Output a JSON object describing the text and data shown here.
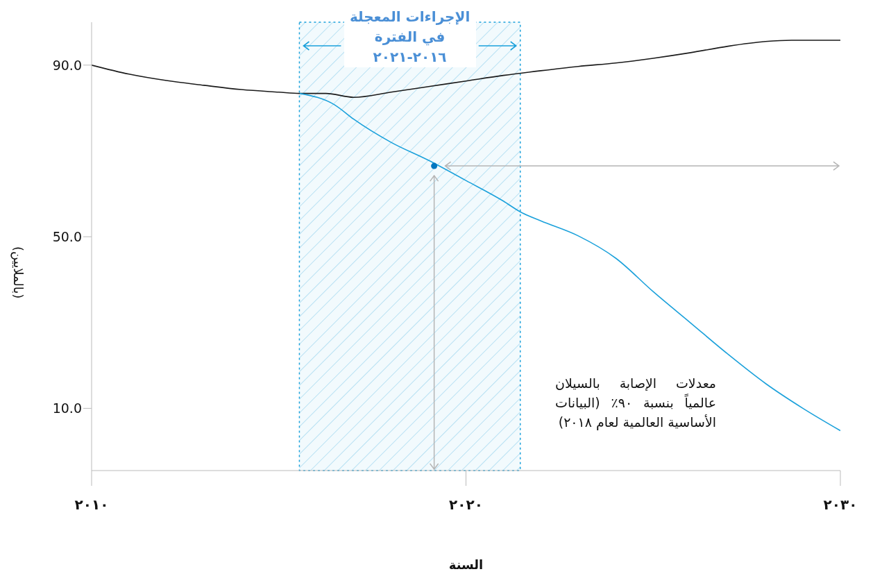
{
  "chart_data": {
    "type": "line",
    "xlabel": "السنة",
    "ylabel": "(بالملايين)",
    "xlim": [
      2010,
      2030
    ],
    "xticks": [
      {
        "value": 2010,
        "label": "٢٠١٠"
      },
      {
        "value": 2020,
        "label": "٢٠٢٠"
      },
      {
        "value": 2030,
        "label": "٢٠٣٠"
      }
    ],
    "ylim": [
      -4.5,
      100
    ],
    "yticks": [
      {
        "value": 10,
        "label": "10.0"
      },
      {
        "value": 50,
        "label": "50.0"
      },
      {
        "value": 90,
        "label": "90.0"
      }
    ],
    "marker": "none",
    "line_style": "solid",
    "series": [
      {
        "color": "#1a1a1a",
        "x": [
          2010,
          2011,
          2012,
          2013,
          2014,
          2015,
          2015.56,
          2016.26,
          2017,
          2018,
          2019,
          2020,
          2021,
          2022,
          2023,
          2024,
          2025,
          2026,
          2027,
          2028,
          2028.7,
          2030
        ],
        "values": [
          90,
          87.9,
          86.4,
          85.3,
          84.3,
          83.7,
          83.4,
          83.4,
          82.5,
          83.7,
          85,
          86.3,
          87.6,
          88.7,
          89.7,
          90.5,
          91.6,
          92.9,
          94.4,
          95.5,
          95.8,
          95.8
        ]
      },
      {
        "color": "#1ba1db",
        "x": [
          2015.56,
          2016.5,
          2017,
          2018,
          2019,
          2020,
          2021,
          2021.45,
          2022,
          2023,
          2024,
          2025,
          2026,
          2027,
          2028,
          2029,
          2030
        ],
        "values": [
          83.4,
          80.7,
          77.4,
          72,
          67.8,
          63.1,
          58.3,
          55.8,
          53.7,
          50.2,
          45,
          37.2,
          29.9,
          22.6,
          15.8,
          10,
          4.8
        ]
      },
      {
        "type": "scatter",
        "marker": "circle",
        "color": "#0077c0",
        "x": [
          2019.15
        ],
        "values": [
          66.5
        ]
      }
    ],
    "bands": [
      {
        "axis": "x",
        "from": 2015.55,
        "to": 2021.45,
        "label": "الإجراءات المعجلة في الفترة ٢٠١٦-٢٠٢١",
        "color": "#1ba1db"
      }
    ],
    "ref_lines": [
      {
        "axis": "y",
        "value": 66.5,
        "color": "#b5b5b5"
      },
      {
        "axis": "x",
        "value": 2019.15,
        "color": "#b5b5b5"
      }
    ],
    "annotations": [
      "معدلات الإصابة بالسيلان عالمياً بنسبة ٩٠٪ (البيانات الأساسية العالمية لعام ٢٠١٨)"
    ]
  }
}
